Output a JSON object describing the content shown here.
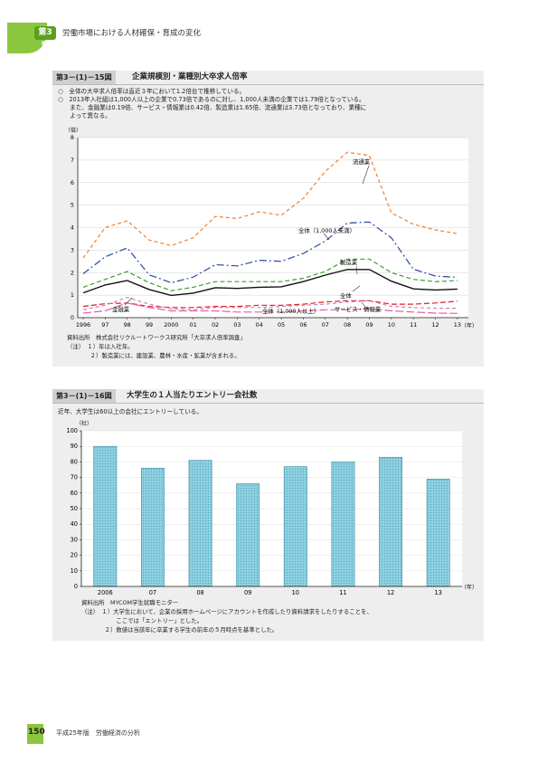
{
  "header": {
    "chapter_badge": "第3章",
    "chapter_title": "労働市場における人材確保・育成の変化"
  },
  "fig15": {
    "number": "第3－(1)－15図",
    "title": "企業規模別・業種別大卒求人倍率",
    "bullets": [
      "○　全体の大卒求人倍率は直近３年において1.2倍台で推移している。",
      "○　2013年入社組は1,000人以上の企業で0.73倍であるのに対し、1,000人未満の企業では1.79倍となっている。",
      "　　また、金融業は0.19倍、サービス・情報業は0.42倍、製造業は1.65倍、流通業は3.73倍となっており、業種に",
      "　　よって異なる。"
    ],
    "source": "資料出所　株式会社リクルートワークス研究所「大卒求人倍率調査」",
    "notes": [
      "（注）　１）年は入社年。",
      "　　　　２）製造業には、建設業、農林・水産・鉱業が含まれる。"
    ]
  },
  "fig16": {
    "number": "第3－(1)－16図",
    "title": "大学生の１人当たりエントリー会社数",
    "subtitle": "近年、大学生は60以上の会社にエントリーしている。",
    "source": "資料出所　MYCOM学生就職モニター",
    "notes": [
      "（注）　１）大学生において、企業の採用ホームページにアカウントを作成したり資料請求をしたりすることを、",
      "　　　　　　ここでは「エントリー」とした。",
      "　　　　２）数値は当該年に卒業する学生の前年の５月時点を基準とした。"
    ]
  },
  "chart_data": [
    {
      "type": "line",
      "ylabel": "（倍）",
      "xlabel": "（年）",
      "ylim": [
        0,
        8
      ],
      "yticks": [
        "0",
        "1",
        "2",
        "3",
        "4",
        "5",
        "6",
        "7",
        "8"
      ],
      "categories": [
        "1996",
        "97",
        "98",
        "99",
        "2000",
        "01",
        "02",
        "03",
        "04",
        "05",
        "06",
        "07",
        "08",
        "09",
        "10",
        "11",
        "12",
        "13"
      ],
      "series": [
        {
          "name": "流通業",
          "color": "#f08030",
          "dash": "4,3",
          "values": [
            2.65,
            4.0,
            4.3,
            3.45,
            3.2,
            3.55,
            4.5,
            4.4,
            4.7,
            4.55,
            5.3,
            6.5,
            7.35,
            7.2,
            4.65,
            4.15,
            3.9,
            3.73
          ]
        },
        {
          "name": "全体（1,000人未満）",
          "color": "#2a4aa0",
          "dash": "8,3,2,3",
          "values": [
            1.95,
            2.7,
            3.1,
            1.9,
            1.55,
            1.8,
            2.35,
            2.3,
            2.55,
            2.5,
            2.85,
            3.4,
            4.2,
            4.25,
            3.55,
            2.15,
            1.85,
            1.79
          ]
        },
        {
          "name": "製造業",
          "color": "#3aa02a",
          "dash": "5,3",
          "values": [
            1.35,
            1.7,
            2.05,
            1.55,
            1.2,
            1.35,
            1.6,
            1.6,
            1.6,
            1.6,
            1.75,
            2.05,
            2.6,
            2.6,
            2.0,
            1.7,
            1.6,
            1.65
          ]
        },
        {
          "name": "全体",
          "color": "#111111",
          "dash": "",
          "values": [
            1.1,
            1.45,
            1.65,
            1.25,
            0.99,
            1.09,
            1.33,
            1.3,
            1.35,
            1.37,
            1.6,
            1.89,
            2.14,
            2.14,
            1.62,
            1.28,
            1.23,
            1.27
          ]
        },
        {
          "name": "全体（1,000人以上）",
          "color": "#e02020",
          "dash": "6,3",
          "values": [
            0.5,
            0.62,
            0.65,
            0.5,
            0.45,
            0.45,
            0.5,
            0.5,
            0.55,
            0.55,
            0.6,
            0.7,
            0.75,
            0.75,
            0.6,
            0.6,
            0.65,
            0.73
          ]
        },
        {
          "name": "サービス・情報業",
          "color": "#d080c0",
          "dash": "4,3",
          "values": [
            0.35,
            0.55,
            0.9,
            0.6,
            0.4,
            0.35,
            0.45,
            0.45,
            0.45,
            0.5,
            0.55,
            0.6,
            0.7,
            0.75,
            0.5,
            0.45,
            0.42,
            0.42
          ]
        },
        {
          "name": "金融業",
          "color": "#e060a0",
          "dash": "9,3",
          "values": [
            0.2,
            0.3,
            0.65,
            0.45,
            0.3,
            0.3,
            0.3,
            0.25,
            0.25,
            0.25,
            0.3,
            0.35,
            0.35,
            0.4,
            0.3,
            0.25,
            0.2,
            0.19
          ]
        }
      ]
    },
    {
      "type": "bar",
      "ylabel": "（社）",
      "xlabel": "（年）",
      "ylim": [
        0,
        100
      ],
      "yticks": [
        "0",
        "10",
        "20",
        "30",
        "40",
        "50",
        "60",
        "70",
        "80",
        "90",
        "100"
      ],
      "categories": [
        "2006",
        "07",
        "08",
        "09",
        "10",
        "11",
        "12",
        "13"
      ],
      "values": [
        90,
        76,
        81,
        66,
        77,
        80,
        83,
        69
      ],
      "color": "#8fd0e0"
    }
  ],
  "footer": {
    "page_number": "150",
    "publication": "平成25年版　労働経済の分析"
  }
}
